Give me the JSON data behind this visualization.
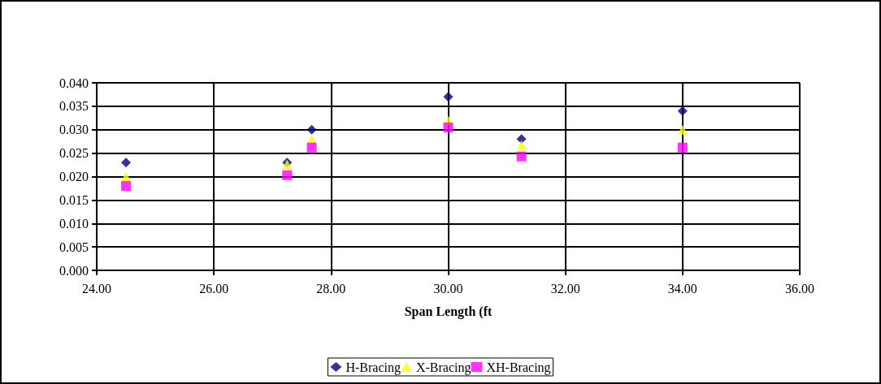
{
  "chart_data": {
    "type": "scatter",
    "xlabel": "Span Length (ft",
    "x": [
      24.5,
      27.25,
      27.67,
      30.0,
      31.25,
      34.0
    ],
    "series": [
      {
        "name": "H-Bracing",
        "color": "#000080",
        "marker": "diamond",
        "values": [
          0.023,
          0.023,
          0.03,
          0.037,
          0.028,
          0.034
        ]
      },
      {
        "name": "X-Bracing",
        "color": "#ffff00",
        "marker": "triangle",
        "values": [
          0.02,
          0.0226,
          0.028,
          0.032,
          0.0267,
          0.03
        ]
      },
      {
        "name": "XH-Bracing",
        "color": "#ff00ff",
        "marker": "square",
        "values": [
          0.018,
          0.0203,
          0.0262,
          0.0305,
          0.0243,
          0.0262
        ]
      }
    ],
    "xlim": [
      24,
      36
    ],
    "xticks": [
      {
        "value": 24,
        "label": "24.00"
      },
      {
        "value": 26,
        "label": "26.00"
      },
      {
        "value": 28,
        "label": "28.00"
      },
      {
        "value": 30,
        "label": "30.00"
      },
      {
        "value": 32,
        "label": "32.00"
      },
      {
        "value": 34,
        "label": "34.00"
      },
      {
        "value": 36,
        "label": "36.00"
      }
    ],
    "ylim": [
      0,
      0.04
    ],
    "yticks": [
      {
        "value": 0,
        "label": "0.000"
      },
      {
        "value": 0.005,
        "label": "0.005"
      },
      {
        "value": 0.01,
        "label": "0.010"
      },
      {
        "value": 0.015,
        "label": "0.015"
      },
      {
        "value": 0.02,
        "label": "0.020"
      },
      {
        "value": 0.025,
        "label": "0.025"
      },
      {
        "value": 0.03,
        "label": "0.030"
      },
      {
        "value": 0.035,
        "label": "0.035"
      },
      {
        "value": 0.04,
        "label": "0.040"
      }
    ],
    "grid": true,
    "legend": "bottom"
  }
}
